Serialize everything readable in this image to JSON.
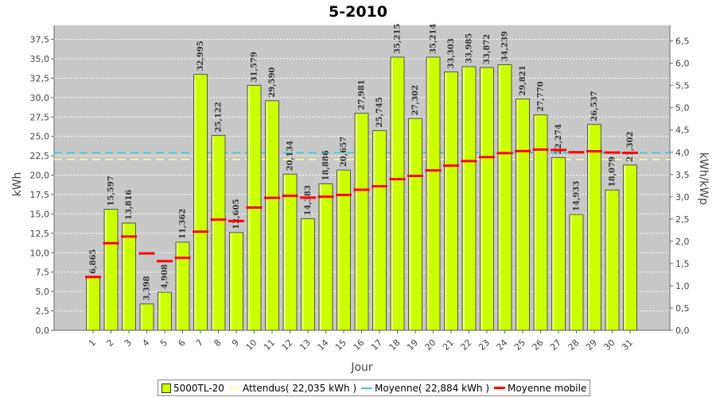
{
  "chart_data": {
    "type": "bar",
    "title": "5-2010",
    "xlabel": "Jour",
    "ylabel": "kWh",
    "y2label": "kWh/kWp",
    "categories": [
      "1",
      "2",
      "3",
      "4",
      "5",
      "6",
      "7",
      "8",
      "9",
      "10",
      "11",
      "12",
      "13",
      "14",
      "15",
      "16",
      "17",
      "18",
      "19",
      "20",
      "21",
      "22",
      "23",
      "24",
      "25",
      "26",
      "27",
      "28",
      "29",
      "30",
      "31"
    ],
    "ylim": [
      0,
      39.3
    ],
    "y2lim": [
      0,
      6.85
    ],
    "yticks": [
      "0,0",
      "2,5",
      "5,0",
      "7,5",
      "10,0",
      "12,5",
      "15,0",
      "17,5",
      "20,0",
      "22,5",
      "25,0",
      "27,5",
      "30,0",
      "32,5",
      "35,0",
      "37,5"
    ],
    "y2ticks": [
      "0,0",
      "0,5",
      "1,0",
      "1,5",
      "2,0",
      "2,5",
      "3,0",
      "3,5",
      "4,0",
      "4,5",
      "5,0",
      "5,5",
      "6,0",
      "6,5"
    ],
    "series": [
      {
        "name": "5000TL-20",
        "values": [
          6.865,
          15.597,
          13.816,
          3.398,
          4.908,
          11.362,
          32.995,
          25.122,
          12.605,
          31.579,
          29.59,
          20.134,
          14.383,
          18.886,
          20.657,
          27.981,
          25.745,
          35.215,
          27.302,
          35.214,
          33.303,
          33.985,
          33.872,
          34.239,
          29.821,
          27.77,
          22.274,
          14.933,
          26.537,
          18.079,
          21.302
        ],
        "labels": [
          "6,865",
          "15,597",
          "13,816",
          "3,398",
          "4,908",
          "11,362",
          "32,995",
          "25,122",
          "12,605",
          "31,579",
          "29,590",
          "20,134",
          "14,383",
          "18,886",
          "20,657",
          "27,981",
          "25,745",
          "35,215",
          "27,302",
          "35,214",
          "33,303",
          "33,985",
          "33,872",
          "34,239",
          "29,821",
          "27,770",
          "22,274",
          "14,933",
          "26,537",
          "18,079",
          "21,302"
        ]
      },
      {
        "name": "Moyenne mobile",
        "values": [
          6.865,
          11.23,
          12.09,
          9.92,
          8.92,
          9.34,
          12.72,
          14.27,
          14.08,
          15.83,
          17.08,
          17.33,
          17.1,
          17.22,
          17.45,
          18.11,
          18.56,
          19.49,
          19.9,
          20.61,
          21.24,
          21.81,
          22.33,
          22.83,
          23.11,
          23.29,
          23.25,
          22.95,
          23.08,
          22.91,
          22.88
        ]
      }
    ],
    "reference_lines": [
      {
        "name": "Attendus( 22,035 kWh )",
        "value": 22.035
      },
      {
        "name": "Moyenne( 22,884 kWh )",
        "value": 22.884
      }
    ],
    "legend_position": "bottom",
    "grid": true
  },
  "legend": {
    "bars": "5000TL-20",
    "expected": "Attendus( 22,035 kWh )",
    "average": "Moyenne( 22,884 kWh )",
    "moving_average": "Moyenne mobile"
  },
  "colors": {
    "plot_bg": "#c8c8c8",
    "bar_fill": "#ccff00",
    "bar_stroke": "#555555",
    "expected_line": "#ffff99",
    "average_line": "#33cccc",
    "moving_average": "#ff0000",
    "grid": "#ffffff"
  }
}
